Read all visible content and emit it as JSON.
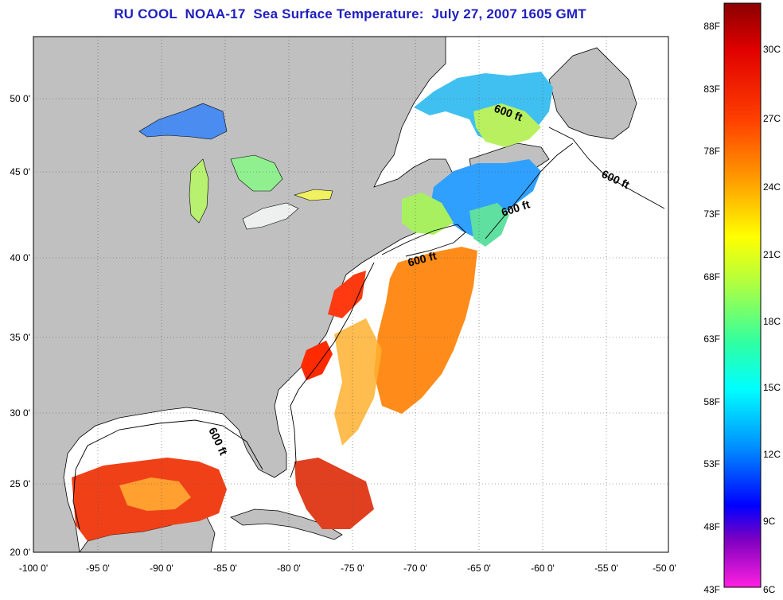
{
  "title": "RU COOL  NOAA-17  Sea Surface Temperature:  July 27, 2007 1605 GMT",
  "axes": {
    "lon_labels": [
      "-100 0'",
      "-95 0'",
      "-90 0'",
      "-85 0'",
      "-80 0'",
      "-75 0'",
      "-70 0'",
      "-65 0'",
      "-60 0'",
      "-55 0'",
      "-50 0'"
    ],
    "lat_labels": [
      "50 0'",
      "45 0'",
      "40 0'",
      "35 0'",
      "30 0'",
      "25 0'",
      "20 0'"
    ]
  },
  "contour_labels": [
    "600 ft",
    "600 ft",
    "600 ft",
    "600 ft",
    "600 ft"
  ],
  "colorbar": {
    "fahrenheit": [
      "88F",
      "83F",
      "78F",
      "73F",
      "68F",
      "63F",
      "58F",
      "53F",
      "48F",
      "43F"
    ],
    "celsius": [
      "30C",
      "27C",
      "24C",
      "21C",
      "18C",
      "15C",
      "12C",
      "9C",
      "6C"
    ]
  },
  "colors": {
    "land": "#c0c0c0",
    "title": "#1f1fbf",
    "water_nodata": "#ffffff"
  }
}
